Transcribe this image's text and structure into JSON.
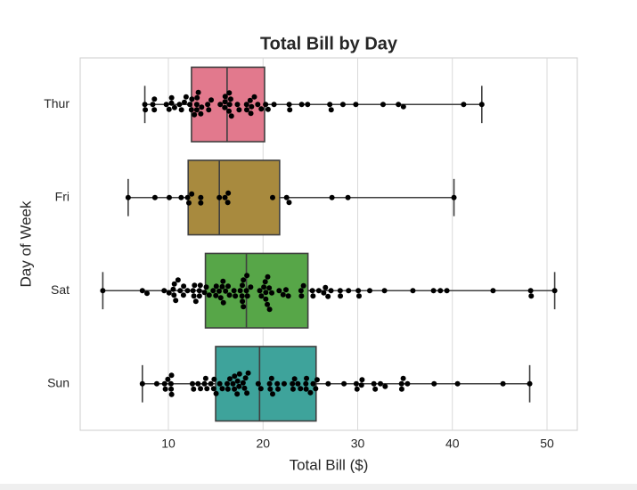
{
  "chart_data": {
    "type": "box",
    "title": "Total Bill by Day",
    "xlabel": "Total Bill ($)",
    "ylabel": "Day of Week",
    "categories": [
      "Thur",
      "Fri",
      "Sat",
      "Sun"
    ],
    "boxes": [
      {
        "min": 7.51,
        "q1": 12.44,
        "median": 16.2,
        "q3": 20.16,
        "max": 43.11,
        "color": "#e2798d"
      },
      {
        "min": 5.75,
        "q1": 12.09,
        "median": 15.38,
        "q3": 21.75,
        "max": 40.17,
        "color": "#a88a3e"
      },
      {
        "min": 3.07,
        "q1": 13.91,
        "median": 18.24,
        "q3": 24.74,
        "max": 50.81,
        "color": "#57a648"
      },
      {
        "min": 7.25,
        "q1": 14.99,
        "median": 19.63,
        "q3": 25.6,
        "max": 48.17,
        "color": "#3ea39b"
      }
    ],
    "points": [
      [
        27.2,
        22.76,
        17.29,
        19.44,
        16.66,
        10.07,
        32.68,
        15.98,
        34.83,
        13.03,
        18.28,
        24.71,
        21.16,
        10.65,
        12.43,
        24.08,
        11.69,
        13.42,
        14.26,
        15.95,
        12.48,
        29.8,
        8.52,
        14.52,
        11.38,
        22.82,
        19.08,
        20.27,
        11.17,
        12.26,
        18.26,
        8.51,
        10.33,
        14.15,
        16.0,
        13.16,
        17.47,
        34.3,
        41.19,
        27.05,
        16.43,
        8.35,
        18.64,
        11.87,
        9.78,
        7.51,
        19.81,
        28.44,
        15.48,
        16.58,
        7.56,
        10.34,
        43.11,
        13.0,
        13.51,
        18.71,
        12.74,
        13.0,
        16.4,
        20.53,
        16.47,
        18.78
      ],
      [
        28.97,
        22.49,
        5.75,
        16.32,
        22.75,
        40.17,
        27.28,
        12.03,
        21.01,
        12.46,
        11.35,
        15.38,
        12.16,
        13.42,
        8.58,
        15.98,
        13.42,
        16.27,
        10.09
      ],
      [
        20.65,
        17.92,
        20.29,
        15.77,
        39.42,
        19.82,
        17.81,
        13.37,
        12.69,
        21.7,
        19.65,
        9.55,
        18.35,
        15.06,
        20.69,
        17.78,
        24.06,
        16.31,
        16.93,
        18.69,
        31.27,
        16.04,
        38.01,
        26.41,
        11.24,
        48.27,
        20.29,
        13.81,
        11.02,
        18.29,
        17.59,
        20.08,
        16.45,
        3.07,
        20.23,
        15.01,
        12.02,
        17.07,
        26.86,
        25.28,
        14.73,
        10.51,
        17.92,
        44.3,
        22.42,
        20.92,
        15.36,
        20.49,
        25.21,
        18.24,
        14.31,
        14.0,
        7.25,
        10.59,
        10.63,
        50.81,
        15.81,
        26.59,
        38.73,
        24.27,
        12.76,
        30.06,
        25.89,
        48.33,
        13.27,
        28.17,
        12.9,
        28.15,
        11.59,
        7.74,
        30.14,
        20.45,
        13.28,
        22.12,
        24.01,
        15.69,
        11.61,
        10.77,
        15.53,
        10.07,
        12.6,
        32.83,
        35.83,
        29.03,
        27.18,
        22.67,
        17.82
      ],
      [
        16.99,
        10.34,
        21.01,
        23.68,
        24.59,
        25.29,
        8.77,
        26.88,
        15.04,
        14.78,
        10.27,
        35.26,
        15.42,
        18.43,
        14.83,
        21.58,
        10.33,
        16.29,
        16.97,
        17.46,
        13.94,
        9.68,
        30.4,
        18.29,
        22.23,
        32.4,
        28.55,
        18.04,
        12.54,
        10.29,
        34.81,
        9.94,
        25.56,
        19.49,
        38.07,
        23.95,
        25.71,
        17.31,
        29.93,
        14.07,
        13.13,
        17.26,
        24.55,
        19.77,
        29.85,
        48.17,
        25.0,
        13.39,
        16.49,
        21.5,
        12.66,
        16.21,
        13.81,
        17.51,
        24.52,
        20.76,
        31.71,
        7.25,
        31.85,
        16.82,
        32.9,
        17.89,
        14.48,
        9.6,
        34.63,
        34.65,
        23.33,
        45.35,
        23.17,
        40.55,
        20.69,
        20.9,
        30.46,
        18.15,
        23.1,
        15.69
      ]
    ],
    "point_color": "#000000",
    "xlim": [
      0.68,
      53.2
    ],
    "xticks": [
      10,
      20,
      30,
      40,
      50
    ],
    "grid": true
  }
}
